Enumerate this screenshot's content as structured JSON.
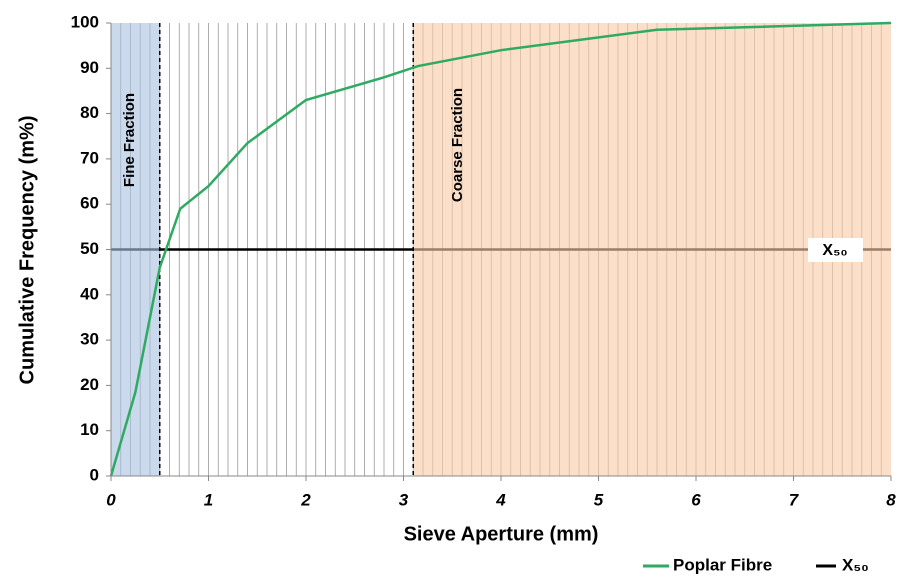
{
  "chart_data": {
    "type": "line",
    "x_label": "Sieve Aperture (mm)",
    "y_label": "Cumulative Frequency (m%)",
    "xlim": [
      0,
      8
    ],
    "xticks": [
      0,
      1,
      2,
      3,
      4,
      5,
      6,
      7,
      8
    ],
    "ylim": [
      0,
      100
    ],
    "yticks": [
      0,
      10,
      20,
      30,
      40,
      50,
      60,
      70,
      80,
      90,
      100
    ],
    "x_minor_grid": 0.1,
    "regions": [
      {
        "label": "Fine Fraction",
        "x": [
          0,
          0.5
        ],
        "color": "#a9c1e0"
      },
      {
        "label": "Coarse Fraction",
        "x": [
          3.1,
          8
        ],
        "color": "#f8cba8"
      }
    ],
    "series": [
      {
        "name": "Poplar Fibre",
        "color": "#2eaa62",
        "x": [
          0,
          0.25,
          0.5,
          0.71,
          1,
          1.4,
          2,
          2.8,
          3.15,
          4,
          5.6,
          8
        ],
        "values": [
          0,
          18.5,
          46,
          59,
          64,
          73.5,
          83,
          88,
          90.5,
          94,
          98.5,
          100
        ]
      },
      {
        "name": "X₅₀",
        "color": "#000000",
        "x": [
          0,
          8
        ],
        "values": [
          50,
          50
        ]
      }
    ],
    "annotation": "X₅₀",
    "legend": "bottom-right"
  }
}
